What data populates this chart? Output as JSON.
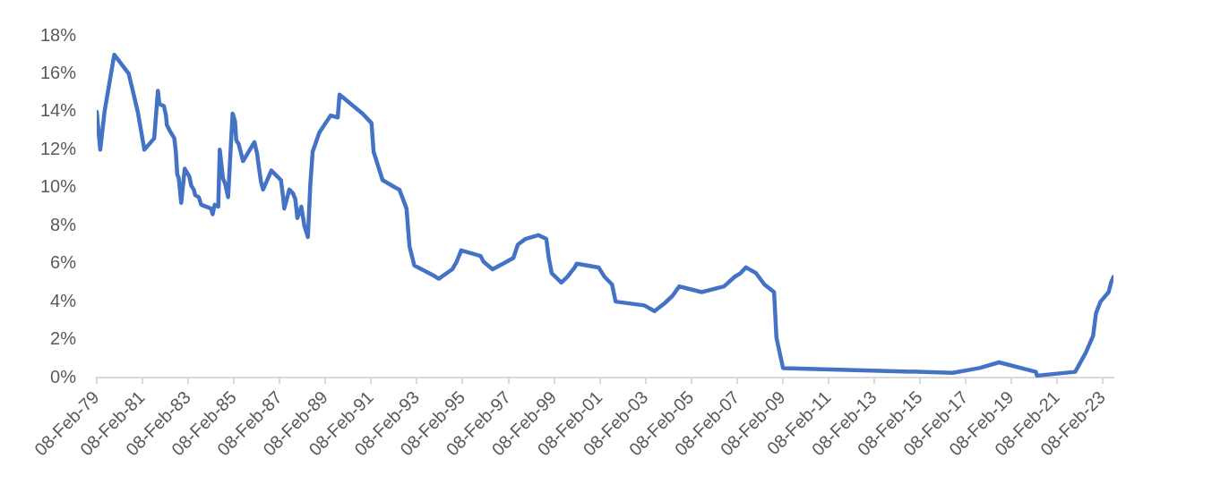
{
  "chart_data": {
    "type": "line",
    "color": "#4472c4",
    "marker": "none",
    "x": [
      "1979-02-08",
      "1979-04-05",
      "1979-06-12",
      "1979-11-15",
      "1980-07-03",
      "1980-11-24",
      "1981-03-10",
      "1981-08-14",
      "1981-10-12",
      "1981-11-04",
      "1982-01-15",
      "1982-02-18",
      "1982-03-04",
      "1982-04-20",
      "1982-07-01",
      "1982-07-25",
      "1982-08-17",
      "1982-09-10",
      "1982-10-19",
      "1982-12-15",
      "1983-02-25",
      "1983-03-30",
      "1983-05-08",
      "1983-05-31",
      "1983-07-27",
      "1983-09-04",
      "1984-02-08",
      "1984-03-04",
      "1984-04-06",
      "1984-06-02",
      "1984-06-26",
      "1984-08-16",
      "1984-09-20",
      "1984-11-06",
      "1985-01-17",
      "1985-02-25",
      "1985-03-16",
      "1985-04-24",
      "1985-07-03",
      "1985-12-31",
      "1986-02-12",
      "1986-03-12",
      "1986-04-16",
      "1986-05-19",
      "1986-09-28",
      "1987-01-27",
      "1987-02-28",
      "1987-04-08",
      "1987-04-22",
      "1987-07-12",
      "1987-09-08",
      "1987-10-16",
      "1987-11-18",
      "1988-01-20",
      "1988-03-08",
      "1988-05-04",
      "1988-06-12",
      "1988-07-19",
      "1988-11-02",
      "1989-05-01",
      "1989-08-24",
      "1989-09-21",
      "1990-09-24",
      "1991-02-14",
      "1991-03-19",
      "1991-08-09",
      "1992-03-03",
      "1992-05-04",
      "1992-08-26",
      "1992-10-13",
      "1992-12-28",
      "1993-10-19",
      "1994-01-23",
      "1994-08-26",
      "1994-11-05",
      "1995-01-16",
      "1995-11-23",
      "1996-01-08",
      "1996-05-31",
      "1996-11-15",
      "1997-04-30",
      "1997-07-09",
      "1997-11-07",
      "1998-05-31",
      "1998-10-07",
      "1998-11-15",
      "1999-01-01",
      "1999-06-04",
      "1999-09-06",
      "2000-01-04",
      "2000-02-06",
      "2001-01-19",
      "2001-04-25",
      "2001-08-22",
      "2001-10-18",
      "2003-01-19",
      "2003-07-01",
      "2003-12-05",
      "2004-04-13",
      "2004-07-30",
      "2005-07-24",
      "2006-07-16",
      "2006-12-31",
      "2007-04-06",
      "2007-07-01",
      "2007-12-08",
      "2008-04-21",
      "2008-09-22",
      "2008-10-30",
      "2009-02-12",
      "2016-07-15",
      "2017-09-17",
      "2018-07-25",
      "2020-03-04",
      "2020-03-23",
      "2021-11-23",
      "2022-05-10",
      "2022-09-05",
      "2022-10-22",
      "2023-01-02",
      "2023-05-11",
      "2023-06-19",
      "2023-07-27"
    ],
    "values": [
      14,
      12,
      14,
      17,
      16,
      14,
      12,
      12.6,
      15.1,
      14.4,
      14.3,
      13.8,
      13.3,
      13.0,
      12.6,
      11.9,
      10.7,
      10.5,
      9.2,
      11.0,
      10.6,
      10.1,
      9.9,
      9.6,
      9.5,
      9.1,
      8.9,
      8.6,
      9.1,
      9.0,
      12.0,
      10.5,
      10.2,
      9.5,
      13.9,
      13.5,
      12.5,
      12.3,
      11.4,
      12.4,
      11.8,
      11.1,
      10.3,
      9.9,
      10.9,
      10.5,
      10.4,
      9.4,
      8.9,
      9.9,
      9.7,
      9.4,
      8.4,
      9.0,
      8.0,
      7.4,
      10.2,
      11.9,
      12.9,
      13.8,
      13.7,
      14.9,
      13.9,
      13.4,
      11.9,
      10.4,
      10.0,
      9.9,
      8.9,
      6.9,
      5.9,
      5.4,
      5.2,
      5.7,
      6.1,
      6.7,
      6.4,
      6.1,
      5.7,
      6.0,
      6.3,
      7.0,
      7.3,
      7.5,
      7.3,
      6.3,
      5.5,
      5.0,
      5.3,
      5.8,
      6.0,
      5.8,
      5.3,
      4.9,
      4.0,
      3.8,
      3.5,
      3.9,
      4.3,
      4.8,
      4.5,
      4.8,
      5.3,
      5.5,
      5.8,
      5.5,
      4.9,
      4.5,
      2.1,
      0.5,
      0.25,
      0.5,
      0.8,
      0.3,
      0.1,
      0.3,
      1.3,
      2.2,
      3.4,
      4.0,
      4.5,
      5.0,
      5.3
    ],
    "xlim": [
      "1979-02-08",
      "2023-07-27"
    ],
    "xticks": [
      {
        "value": "1979-02-08",
        "label": "08-Feb-79"
      },
      {
        "value": "1981-02-08",
        "label": "08-Feb-81"
      },
      {
        "value": "1983-02-08",
        "label": "08-Feb-83"
      },
      {
        "value": "1985-02-08",
        "label": "08-Feb-85"
      },
      {
        "value": "1987-02-08",
        "label": "08-Feb-87"
      },
      {
        "value": "1989-02-08",
        "label": "08-Feb-89"
      },
      {
        "value": "1991-02-08",
        "label": "08-Feb-91"
      },
      {
        "value": "1993-02-08",
        "label": "08-Feb-93"
      },
      {
        "value": "1995-02-08",
        "label": "08-Feb-95"
      },
      {
        "value": "1997-02-08",
        "label": "08-Feb-97"
      },
      {
        "value": "1999-02-08",
        "label": "08-Feb-99"
      },
      {
        "value": "2001-02-08",
        "label": "08-Feb-01"
      },
      {
        "value": "2003-02-08",
        "label": "08-Feb-03"
      },
      {
        "value": "2005-02-08",
        "label": "08-Feb-05"
      },
      {
        "value": "2007-02-08",
        "label": "08-Feb-07"
      },
      {
        "value": "2009-02-08",
        "label": "08-Feb-09"
      },
      {
        "value": "2011-02-08",
        "label": "08-Feb-11"
      },
      {
        "value": "2013-02-08",
        "label": "08-Feb-13"
      },
      {
        "value": "2015-02-08",
        "label": "08-Feb-15"
      },
      {
        "value": "2017-02-08",
        "label": "08-Feb-17"
      },
      {
        "value": "2019-02-08",
        "label": "08-Feb-19"
      },
      {
        "value": "2021-02-08",
        "label": "08-Feb-21"
      },
      {
        "value": "2023-02-08",
        "label": "08-Feb-23"
      }
    ],
    "ylim": [
      0,
      18
    ],
    "yticks": [
      {
        "value": 0,
        "label": "0%"
      },
      {
        "value": 2,
        "label": "2%"
      },
      {
        "value": 4,
        "label": "4%"
      },
      {
        "value": 6,
        "label": "6%"
      },
      {
        "value": 8,
        "label": "8%"
      },
      {
        "value": 10,
        "label": "10%"
      },
      {
        "value": 12,
        "label": "12%"
      },
      {
        "value": 14,
        "label": "14%"
      },
      {
        "value": 16,
        "label": "16%"
      },
      {
        "value": 18,
        "label": "18%"
      }
    ]
  }
}
